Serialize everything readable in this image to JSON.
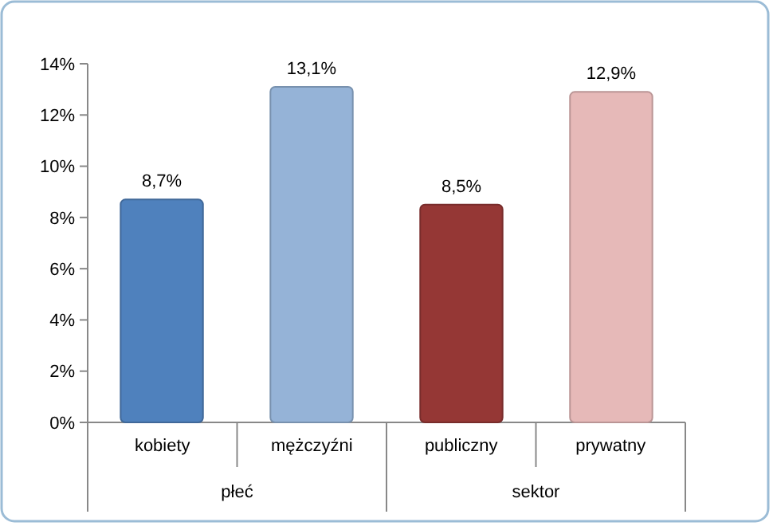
{
  "chart_data": {
    "type": "bar",
    "categories": [
      "kobiety",
      "mężczyźni",
      "publiczny",
      "prywatny"
    ],
    "values": [
      8.7,
      13.1,
      8.5,
      12.9
    ],
    "colors": [
      "#4f81bd",
      "#95b3d7",
      "#953735",
      "#e6b9b8"
    ],
    "value_labels": [
      "8,7%",
      "13,1%",
      "8,5%",
      "12,9%"
    ],
    "ylim": [
      0,
      14
    ],
    "yticks": [
      {
        "value": 0,
        "label": "0%"
      },
      {
        "value": 2,
        "label": "2%"
      },
      {
        "value": 4,
        "label": "4%"
      },
      {
        "value": 6,
        "label": "6%"
      },
      {
        "value": 8,
        "label": "8%"
      },
      {
        "value": 10,
        "label": "10%"
      },
      {
        "value": 12,
        "label": "12%"
      },
      {
        "value": 14,
        "label": "14%"
      }
    ],
    "annotations": [
      "płeć",
      "sektor"
    ],
    "grid": false
  }
}
